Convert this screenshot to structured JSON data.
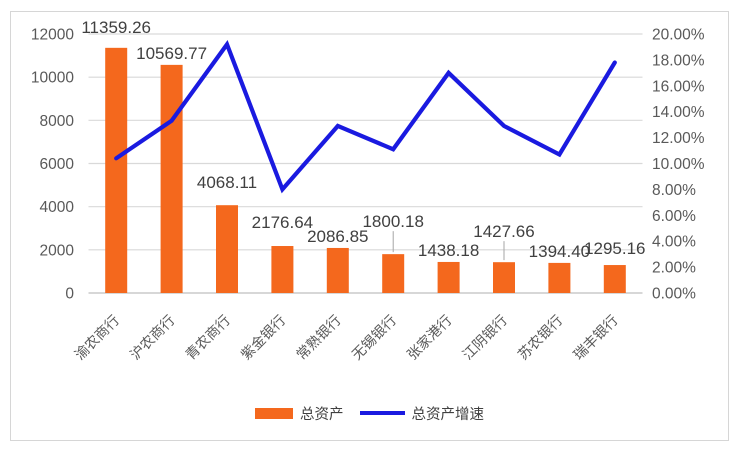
{
  "chart_data": {
    "type": "combo-bar-line",
    "title": "",
    "categories": [
      "渝农商行",
      "沪农商行",
      "青农商行",
      "紫金银行",
      "常熟银行",
      "无锡银行",
      "张家港行",
      "江阴银行",
      "苏农银行",
      "瑞丰银行"
    ],
    "series": [
      {
        "name": "总资产",
        "type": "bar",
        "axis": "left",
        "values": [
          11359.26,
          10569.77,
          4068.11,
          2176.64,
          2086.85,
          1800.18,
          1438.18,
          1427.66,
          1394.4,
          1295.16
        ],
        "data_labels": [
          "11359.26",
          "10569.77",
          "4068.11",
          "2176.64",
          "2086.85",
          "1800.18",
          "1438.18",
          "1427.66",
          "1394.40",
          "1295.16"
        ]
      },
      {
        "name": "总资产增速",
        "type": "line",
        "axis": "right",
        "values": [
          10.4,
          13.3,
          19.2,
          8.0,
          12.9,
          11.1,
          17.0,
          12.9,
          10.7,
          17.8
        ]
      }
    ],
    "left_axis": {
      "min": 0,
      "max": 12000,
      "step": 2000,
      "ticks": [
        "12000",
        "10000",
        "8000",
        "6000",
        "4000",
        "2000",
        "0"
      ]
    },
    "right_axis": {
      "min": 0,
      "max": 20,
      "step": 2,
      "ticks": [
        "20.00%",
        "18.00%",
        "16.00%",
        "14.00%",
        "12.00%",
        "10.00%",
        "8.00%",
        "6.00%",
        "4.00%",
        "2.00%",
        "0.00%"
      ]
    },
    "legend": {
      "position": "bottom",
      "entries": [
        "总资产",
        "总资产增速"
      ]
    },
    "grid": true
  },
  "colors": {
    "bar": "#F4681D",
    "line": "#1A1AE0",
    "gridline": "#D9D9D9",
    "axis_line": "#BFBFBF",
    "tick_text": "#595959",
    "data_label_text": "#404040",
    "leader_line": "#A6A6A6",
    "border": "#D6D6D6"
  }
}
